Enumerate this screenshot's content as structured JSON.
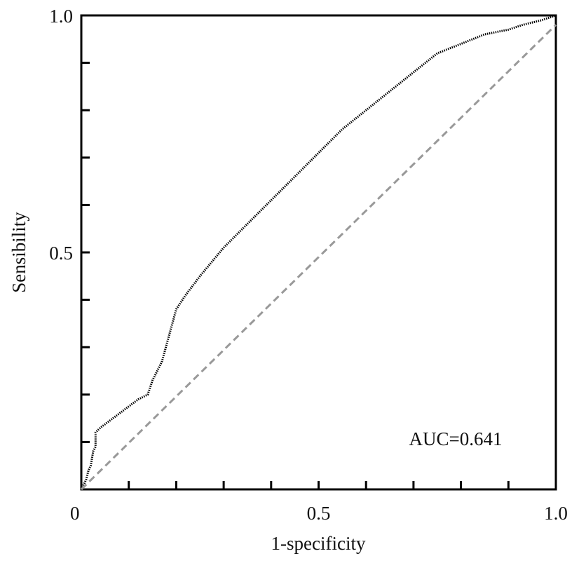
{
  "chart_data": {
    "type": "line",
    "title": "",
    "xlabel": "1-specificity",
    "ylabel": "Sensibility",
    "xlim": [
      0,
      1
    ],
    "ylim": [
      0,
      1
    ],
    "x_ticks": [
      0,
      0.1,
      0.2,
      0.3,
      0.4,
      0.5,
      0.6,
      0.7,
      0.8,
      0.9,
      1.0
    ],
    "y_ticks": [
      0.1,
      0.2,
      0.3,
      0.4,
      0.5,
      0.6,
      0.7,
      0.8,
      0.9,
      1.0
    ],
    "x_tick_labels": [
      {
        "value": 0,
        "label": "0"
      },
      {
        "value": 0.5,
        "label": "0.5"
      },
      {
        "value": 1.0,
        "label": "1.0"
      }
    ],
    "y_tick_labels": [
      {
        "value": 0.5,
        "label": "0.5"
      },
      {
        "value": 1.0,
        "label": "1.0"
      }
    ],
    "annotation": "AUC=0.641",
    "grid": false,
    "series": [
      {
        "style": "dotted",
        "color": "#000000",
        "x": [
          0,
          0.01,
          0.015,
          0.02,
          0.025,
          0.03,
          0.03,
          0.04,
          0.08,
          0.12,
          0.14,
          0.15,
          0.17,
          0.2,
          0.22,
          0.25,
          0.3,
          0.35,
          0.4,
          0.45,
          0.5,
          0.55,
          0.6,
          0.65,
          0.7,
          0.75,
          0.8,
          0.85,
          0.9,
          0.93,
          0.97,
          1.0
        ],
        "y": [
          0,
          0.02,
          0.04,
          0.05,
          0.08,
          0.09,
          0.12,
          0.13,
          0.16,
          0.19,
          0.2,
          0.23,
          0.27,
          0.38,
          0.41,
          0.45,
          0.51,
          0.56,
          0.61,
          0.66,
          0.71,
          0.76,
          0.8,
          0.84,
          0.88,
          0.92,
          0.94,
          0.96,
          0.97,
          0.98,
          0.99,
          1.0
        ]
      },
      {
        "style": "dashed",
        "color": "#999999",
        "x": [
          0,
          1
        ],
        "y": [
          0,
          0.98
        ]
      }
    ]
  }
}
